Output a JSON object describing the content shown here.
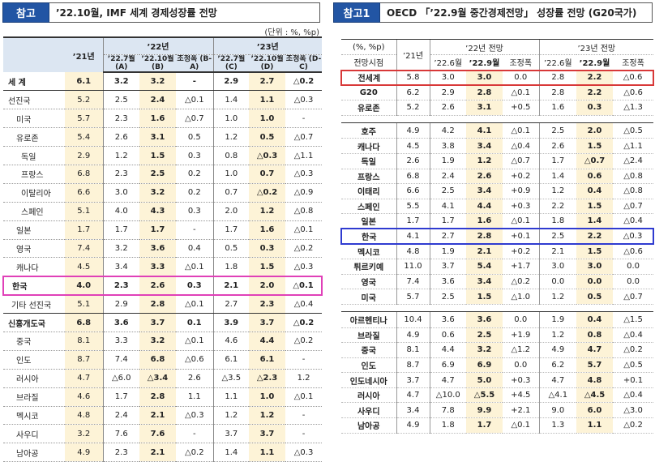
{
  "left": {
    "badge": "참고",
    "title": "’22.10월, IMF 세계 경제성장률 전망",
    "unit": "(단위 : %, %p)",
    "header": {
      "y22": "’22년",
      "y23": "’23년",
      "c21": "’21년",
      "a": "’22.7월 (A)",
      "b": "’22.10월 (B)",
      "ba": "조정폭 (B-A)",
      "c": "’22.7월 (C)",
      "d": "’22.10월 (D)",
      "dc": "조정폭 (D-C)"
    },
    "rows": [
      [
        "세 계",
        "6.1",
        "3.2",
        "3.2",
        "-",
        "2.9",
        "2.7",
        "△0.2"
      ],
      [
        "선진국",
        "5.2",
        "2.5",
        "2.4",
        "△0.1",
        "1.4",
        "1.1",
        "△0.3"
      ],
      [
        "미국",
        "5.7",
        "2.3",
        "1.6",
        "△0.7",
        "1.0",
        "1.0",
        "-"
      ],
      [
        "유로존",
        "5.4",
        "2.6",
        "3.1",
        "0.5",
        "1.2",
        "0.5",
        "△0.7"
      ],
      [
        "독일",
        "2.9",
        "1.2",
        "1.5",
        "0.3",
        "0.8",
        "△0.3",
        "△1.1"
      ],
      [
        "프랑스",
        "6.8",
        "2.3",
        "2.5",
        "0.2",
        "1.0",
        "0.7",
        "△0.3"
      ],
      [
        "이탈리아",
        "6.6",
        "3.0",
        "3.2",
        "0.2",
        "0.7",
        "△0.2",
        "△0.9"
      ],
      [
        "스페인",
        "5.1",
        "4.0",
        "4.3",
        "0.3",
        "2.0",
        "1.2",
        "△0.8"
      ],
      [
        "일본",
        "1.7",
        "1.7",
        "1.7",
        "-",
        "1.7",
        "1.6",
        "△0.1"
      ],
      [
        "영국",
        "7.4",
        "3.2",
        "3.6",
        "0.4",
        "0.5",
        "0.3",
        "△0.2"
      ],
      [
        "캐나다",
        "4.5",
        "3.4",
        "3.3",
        "△0.1",
        "1.8",
        "1.5",
        "△0.3"
      ],
      [
        "한국",
        "4.0",
        "2.3",
        "2.6",
        "0.3",
        "2.1",
        "2.0",
        "△0.1"
      ],
      [
        "기타 선진국",
        "5.1",
        "2.9",
        "2.8",
        "△0.1",
        "2.7",
        "2.3",
        "△0.4"
      ],
      [
        "신흥개도국",
        "6.8",
        "3.6",
        "3.7",
        "0.1",
        "3.9",
        "3.7",
        "△0.2"
      ],
      [
        "중국",
        "8.1",
        "3.3",
        "3.2",
        "△0.1",
        "4.6",
        "4.4",
        "△0.2"
      ],
      [
        "인도",
        "8.7",
        "7.4",
        "6.8",
        "△0.6",
        "6.1",
        "6.1",
        "-"
      ],
      [
        "러시아",
        "4.7",
        "△6.0",
        "△3.4",
        "2.6",
        "△3.5",
        "△2.3",
        "1.2"
      ],
      [
        "브라질",
        "4.6",
        "1.7",
        "2.8",
        "1.1",
        "1.1",
        "1.0",
        "△0.1"
      ],
      [
        "멕시코",
        "4.8",
        "2.4",
        "2.1",
        "△0.3",
        "1.2",
        "1.2",
        "-"
      ],
      [
        "사우디",
        "3.2",
        "7.6",
        "7.6",
        "-",
        "3.7",
        "3.7",
        "-"
      ],
      [
        "남아공",
        "4.9",
        "2.3",
        "2.1",
        "△0.2",
        "1.4",
        "1.1",
        "△0.3"
      ]
    ]
  },
  "right": {
    "badge": "참고1",
    "title": "OECD 「’22.9월 중간경제전망」 성장률 전망 (G20국가)",
    "header": {
      "unit": "(%, %p)",
      "basis": "전망시점",
      "c21": "’21년",
      "y22": "’22년 전망",
      "y23": "’23년 전망",
      "j6a": "’22.6월",
      "s9a": "’22.9월",
      "adj1": "조정폭",
      "j6b": "’22.6월",
      "s9b": "’22.9월",
      "adj2": "조정폭"
    },
    "group1": [
      [
        "전세계",
        "5.8",
        "3.0",
        "3.0",
        "0.0",
        "2.8",
        "2.2",
        "△0.6"
      ],
      [
        "G20",
        "6.2",
        "2.9",
        "2.8",
        "△0.1",
        "2.8",
        "2.2",
        "△0.6"
      ],
      [
        "유로존",
        "5.2",
        "2.6",
        "3.1",
        "+0.5",
        "1.6",
        "0.3",
        "△1.3"
      ]
    ],
    "group2": [
      [
        "호주",
        "4.9",
        "4.2",
        "4.1",
        "△0.1",
        "2.5",
        "2.0",
        "△0.5"
      ],
      [
        "캐나다",
        "4.5",
        "3.8",
        "3.4",
        "△0.4",
        "2.6",
        "1.5",
        "△1.1"
      ],
      [
        "독일",
        "2.6",
        "1.9",
        "1.2",
        "△0.7",
        "1.7",
        "△0.7",
        "△2.4"
      ],
      [
        "프랑스",
        "6.8",
        "2.4",
        "2.6",
        "+0.2",
        "1.4",
        "0.6",
        "△0.8"
      ],
      [
        "이태리",
        "6.6",
        "2.5",
        "3.4",
        "+0.9",
        "1.2",
        "0.4",
        "△0.8"
      ],
      [
        "스페인",
        "5.5",
        "4.1",
        "4.4",
        "+0.3",
        "2.2",
        "1.5",
        "△0.7"
      ],
      [
        "일본",
        "1.7",
        "1.7",
        "1.6",
        "△0.1",
        "1.8",
        "1.4",
        "△0.4"
      ],
      [
        "한국",
        "4.1",
        "2.7",
        "2.8",
        "+0.1",
        "2.5",
        "2.2",
        "△0.3"
      ],
      [
        "멕시코",
        "4.8",
        "1.9",
        "2.1",
        "+0.2",
        "2.1",
        "1.5",
        "△0.6"
      ],
      [
        "튀르키예",
        "11.0",
        "3.7",
        "5.4",
        "+1.7",
        "3.0",
        "3.0",
        "0.0"
      ],
      [
        "영국",
        "7.4",
        "3.6",
        "3.4",
        "△0.2",
        "0.0",
        "0.0",
        "0.0"
      ],
      [
        "미국",
        "5.7",
        "2.5",
        "1.5",
        "△1.0",
        "1.2",
        "0.5",
        "△0.7"
      ]
    ],
    "group3": [
      [
        "아르헨티나",
        "10.4",
        "3.6",
        "3.6",
        "0.0",
        "1.9",
        "0.4",
        "△1.5"
      ],
      [
        "브라질",
        "4.9",
        "0.6",
        "2.5",
        "+1.9",
        "1.2",
        "0.8",
        "△0.4"
      ],
      [
        "중국",
        "8.1",
        "4.4",
        "3.2",
        "△1.2",
        "4.9",
        "4.7",
        "△0.2"
      ],
      [
        "인도",
        "8.7",
        "6.9",
        "6.9",
        "0.0",
        "6.2",
        "5.7",
        "△0.5"
      ],
      [
        "인도네시아",
        "3.7",
        "4.7",
        "5.0",
        "+0.3",
        "4.7",
        "4.8",
        "+0.1"
      ],
      [
        "러시아",
        "4.7",
        "△10.0",
        "△5.5",
        "+4.5",
        "△4.1",
        "△4.5",
        "△0.4"
      ],
      [
        "사우디",
        "3.4",
        "7.8",
        "9.9",
        "+2.1",
        "9.0",
        "6.0",
        "△3.0"
      ],
      [
        "남아공",
        "4.9",
        "1.8",
        "1.7",
        "△0.1",
        "1.3",
        "1.1",
        "△0.2"
      ]
    ]
  }
}
